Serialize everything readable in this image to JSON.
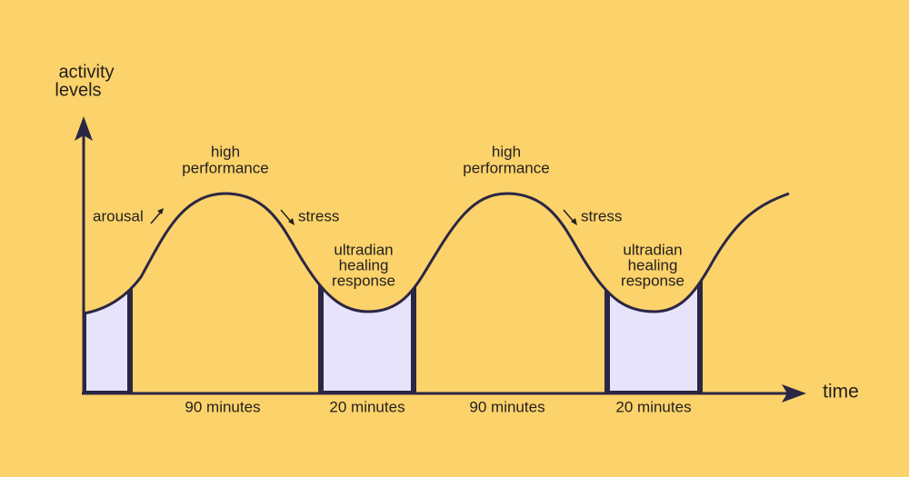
{
  "y_axis_label": [
    "activity",
    "levels"
  ],
  "x_axis_label": "time",
  "arousal_label": "arousal",
  "cycles": [
    {
      "peak_label": [
        "high",
        "performance"
      ],
      "stress_label": "stress",
      "trough_label": [
        "ultradian",
        "healing",
        "response"
      ]
    },
    {
      "peak_label": [
        "high",
        "performance"
      ],
      "stress_label": "stress",
      "trough_label": [
        "ultradian",
        "healing",
        "response"
      ]
    }
  ],
  "durations": [
    "90 minutes",
    "20 minutes",
    "90 minutes",
    "20 minutes"
  ]
}
